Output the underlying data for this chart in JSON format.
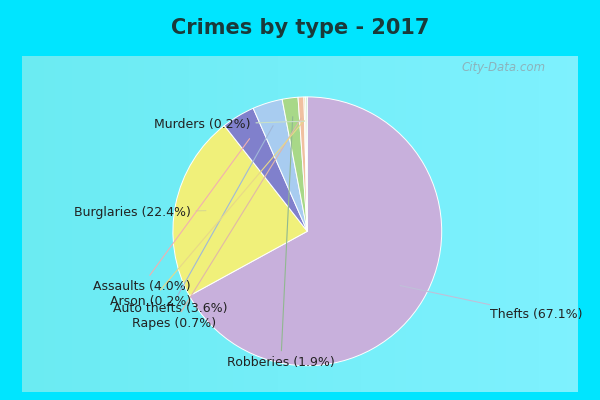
{
  "title": "Crimes by type - 2017",
  "labels": [
    "Thefts",
    "Burglaries",
    "Assaults",
    "Auto thefts",
    "Robberies",
    "Rapes",
    "Arson",
    "Murders"
  ],
  "pct_labels": [
    "Thefts (67.1%)",
    "Burglaries (22.4%)",
    "Assaults (4.0%)",
    "Auto thefts (3.6%)",
    "Robberies (1.9%)",
    "Rapes (0.7%)",
    "Arson (0.2%)",
    "Murders (0.2%)"
  ],
  "values": [
    67.1,
    22.4,
    4.0,
    3.6,
    1.9,
    0.7,
    0.2,
    0.2
  ],
  "colors": [
    "#c8b0dc",
    "#f0f07a",
    "#8080cc",
    "#a8ccf0",
    "#a8d888",
    "#f0c0a0",
    "#f0d890",
    "#c8e8c8"
  ],
  "title_fontsize": 15,
  "label_fontsize": 9,
  "bg_cyan": "#00e5ff",
  "bg_inner": "#d8f0e8",
  "watermark": "City-Data.com",
  "label_color": "#222222",
  "line_colors": [
    "#c0c0d8",
    "#d8d890",
    "#f0b0b0",
    "#a0b8d8",
    "#90b890",
    "#e0b8a8",
    "#e8d888",
    "#c8e0c8"
  ]
}
